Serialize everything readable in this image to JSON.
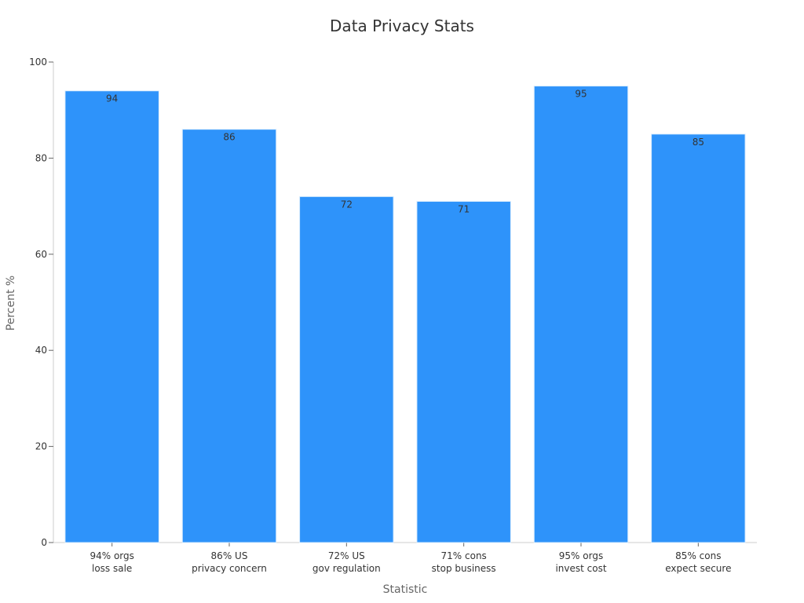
{
  "chart_data": {
    "type": "bar",
    "title": "Data Privacy Stats",
    "xlabel": "Statistic",
    "ylabel": "Percent %",
    "ylim": [
      0,
      100
    ],
    "yticks": [
      0,
      20,
      40,
      60,
      80,
      100
    ],
    "grid": false,
    "categories": [
      [
        "94% orgs",
        "loss sale"
      ],
      [
        "86% US",
        "privacy concern"
      ],
      [
        "72% US",
        "gov regulation"
      ],
      [
        "71% cons",
        "stop business"
      ],
      [
        "95% orgs",
        "invest cost"
      ],
      [
        "85% cons",
        "expect secure"
      ]
    ],
    "values": [
      94,
      86,
      72,
      71,
      95,
      85
    ],
    "data_labels": [
      "94",
      "86",
      "72",
      "71",
      "95",
      "85"
    ],
    "bar_color": "#2e93fa",
    "bar_edge_color": "#d9ecfd"
  }
}
